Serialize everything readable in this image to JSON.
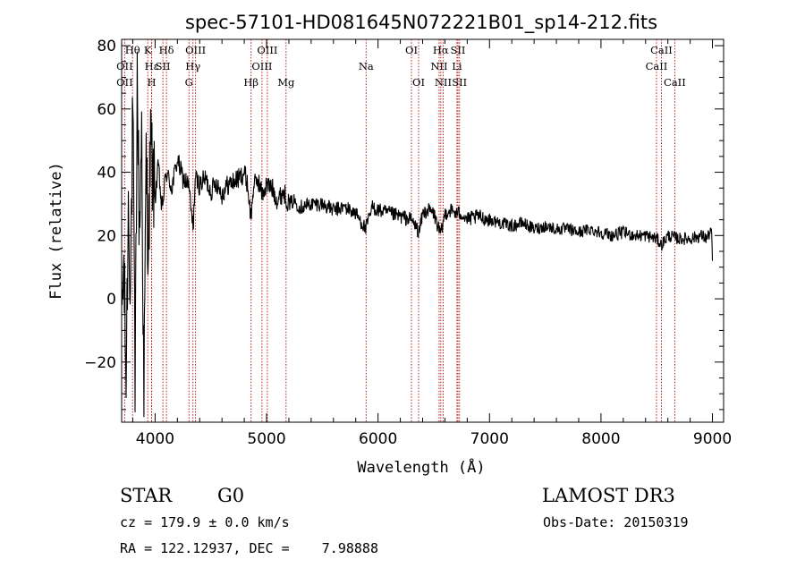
{
  "chart_data": {
    "type": "line",
    "title": "spec-57101-HD081645N072221B01_sp14-212.fits",
    "xlabel": "Wavelength (Å)",
    "ylabel": "Flux (relative)",
    "xlim": [
      3700,
      9100
    ],
    "ylim": [
      -39,
      82
    ],
    "xticks": [
      4000,
      5000,
      6000,
      7000,
      8000,
      9000
    ],
    "yticks": [
      -20,
      0,
      20,
      40,
      60,
      80
    ],
    "line_color": "#000000",
    "marker_color": "#b30000",
    "series": [
      {
        "name": "flux",
        "x": [
          3700,
          3720,
          3740,
          3760,
          3780,
          3800,
          3820,
          3840,
          3860,
          3880,
          3900,
          3920,
          3940,
          3960,
          3980,
          4000,
          4030,
          4060,
          4100,
          4150,
          4200,
          4250,
          4300,
          4340,
          4360,
          4400,
          4450,
          4500,
          4550,
          4600,
          4650,
          4700,
          4750,
          4800,
          4830,
          4861,
          4880,
          4920,
          4960,
          5000,
          5050,
          5100,
          5150,
          5200,
          5250,
          5300,
          5400,
          5500,
          5600,
          5700,
          5800,
          5890,
          5950,
          6000,
          6100,
          6200,
          6300,
          6370,
          6400,
          6450,
          6500,
          6563,
          6600,
          6650,
          6700,
          6750,
          6800,
          6900,
          7000,
          7100,
          7200,
          7300,
          7400,
          7500,
          7600,
          7700,
          7800,
          7900,
          8000,
          8100,
          8200,
          8300,
          8400,
          8500,
          8542,
          8600,
          8700,
          8800,
          8900,
          8950,
          8990,
          9000
        ],
        "values": [
          -5,
          10,
          -25,
          30,
          5,
          60,
          -30,
          70,
          20,
          55,
          -35,
          45,
          15,
          50,
          38,
          32,
          42,
          28,
          40,
          35,
          44,
          38,
          36,
          22,
          38,
          36,
          38,
          34,
          37,
          33,
          36,
          37,
          38,
          40,
          36,
          25,
          35,
          38,
          33,
          36,
          35,
          31,
          34,
          30,
          31,
          29,
          30,
          30,
          28,
          29,
          27,
          22,
          29,
          28,
          27,
          26,
          25,
          21,
          27,
          28,
          27,
          20,
          27,
          28,
          27,
          27,
          25,
          26,
          25,
          24,
          23,
          24,
          22,
          23,
          22,
          22,
          21,
          22,
          21,
          20,
          21,
          20,
          20,
          19,
          17,
          20,
          19,
          19,
          20,
          19,
          22,
          12
        ]
      }
    ],
    "spectral_lines": [
      {
        "label": "Hθ",
        "x": 3798,
        "row": 1
      },
      {
        "label": "OII",
        "x": 3727,
        "row": 2
      },
      {
        "label": "OII",
        "x": 3727,
        "row": 3
      },
      {
        "label": "K",
        "x": 3934,
        "row": 1
      },
      {
        "label": "Hε",
        "x": 3970,
        "row": 2
      },
      {
        "label": "Hδ",
        "x": 4102,
        "row": 1
      },
      {
        "label": "SII",
        "x": 4070,
        "row": 2
      },
      {
        "label": "H",
        "x": 3969,
        "row": 3
      },
      {
        "label": "OIII",
        "x": 4363,
        "row": 1
      },
      {
        "label": "Hγ",
        "x": 4340,
        "row": 2
      },
      {
        "label": "G",
        "x": 4304,
        "row": 3
      },
      {
        "label": "Hβ",
        "x": 4861,
        "row": 3
      },
      {
        "label": "OIII",
        "x": 5007,
        "row": 1
      },
      {
        "label": "OIII",
        "x": 4959,
        "row": 2
      },
      {
        "label": "Mg",
        "x": 5175,
        "row": 3
      },
      {
        "label": "Na",
        "x": 5893,
        "row": 2
      },
      {
        "label": "OI",
        "x": 6300,
        "row": 1
      },
      {
        "label": "OI",
        "x": 6364,
        "row": 3
      },
      {
        "label": "Hα",
        "x": 6563,
        "row": 1
      },
      {
        "label": "SII",
        "x": 6717,
        "row": 1
      },
      {
        "label": "NII",
        "x": 6548,
        "row": 2
      },
      {
        "label": "Li",
        "x": 6708,
        "row": 2
      },
      {
        "label": "NII",
        "x": 6584,
        "row": 3
      },
      {
        "label": "SII",
        "x": 6731,
        "row": 3
      },
      {
        "label": "CaII",
        "x": 8542,
        "row": 1
      },
      {
        "label": "CaII",
        "x": 8498,
        "row": 2
      },
      {
        "label": "CaII",
        "x": 8662,
        "row": 3
      }
    ]
  },
  "info": {
    "object_class": "STAR",
    "subclass": "G0",
    "survey": "LAMOST DR3",
    "cz": "cz = 179.9 ± 0.0 km/s",
    "obs_date": "Obs-Date: 20150319",
    "coords": "RA = 122.12937, DEC =    7.98888"
  }
}
